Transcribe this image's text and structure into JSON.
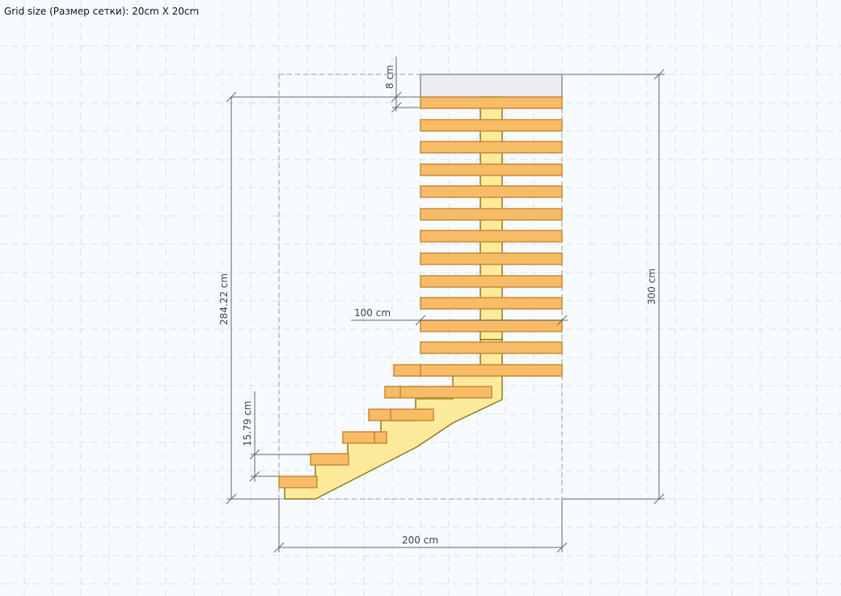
{
  "header": {
    "grid_size_label": "Grid size (Размер сетки): 20cm X 20cm"
  },
  "dimensions": {
    "top_gap": "8 cm",
    "left_height": "284.22 cm",
    "right_height": "300 cm",
    "step_width": "100 cm",
    "riser_height": "15.79 cm",
    "total_length": "200 cm"
  },
  "colors": {
    "background": "#f7fbfe",
    "grid": "#d6e2ea",
    "tread_fill": "#f8bb66",
    "tread_stroke": "#c88a3a",
    "stringer_fill": "#fdeb9b",
    "stringer_stroke": "#8a7a20",
    "platform_fill": "#ececf1",
    "dimension_line": "#666666"
  }
}
